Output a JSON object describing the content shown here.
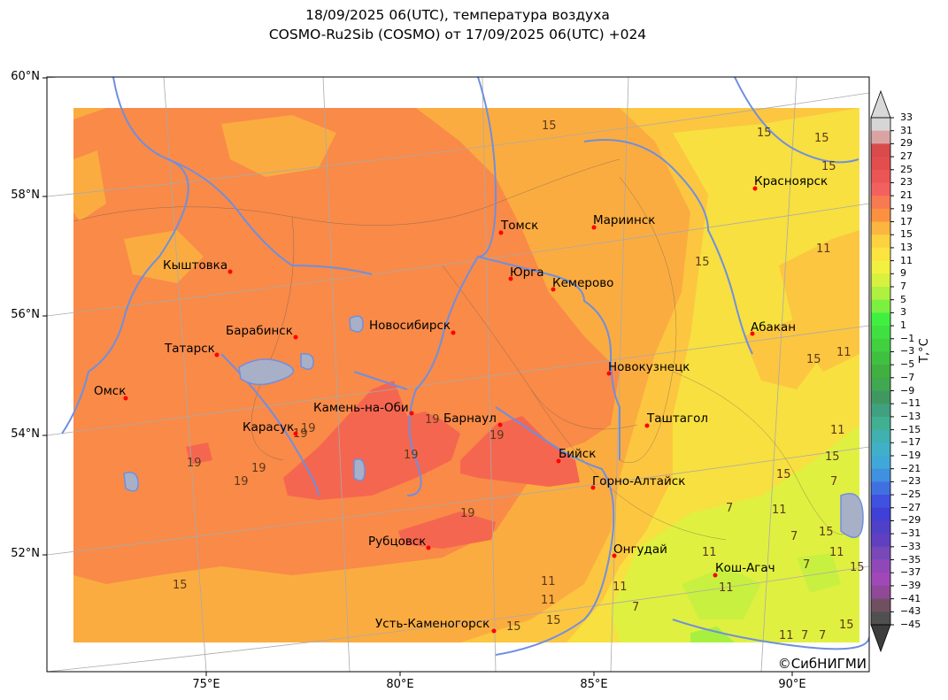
{
  "title_line1": "18/09/2025 06(UTC), температура воздуха",
  "title_line2": "COSMO-Ru2Sib (COSMO) от 17/09/2025 06(UTC) +024",
  "copyright": "©СибНИГМИ",
  "lat_labels": [
    "60°N",
    "58°N",
    "56°N",
    "54°N",
    "52°N"
  ],
  "lon_labels": [
    "75°E",
    "80°E",
    "85°E",
    "90°E"
  ],
  "colorbar": {
    "unit": "T,°C",
    "ticks": [
      "33",
      "31",
      "29",
      "27",
      "25",
      "23",
      "21",
      "19",
      "17",
      "15",
      "13",
      "11",
      "9",
      "7",
      "5",
      "3",
      "1",
      "−1",
      "−3",
      "−5",
      "−7",
      "−9",
      "−11",
      "−13",
      "−15",
      "−17",
      "−19",
      "−21",
      "−23",
      "−25",
      "−27",
      "−29",
      "−31",
      "−33",
      "−35",
      "−37",
      "−39",
      "−41",
      "−43",
      "−45"
    ],
    "colors": [
      "#d6d6d6",
      "#d9a3a3",
      "#d94a4a",
      "#e34d4d",
      "#eb5555",
      "#f36060",
      "#f87a50",
      "#fa9040",
      "#fbb640",
      "#fcd240",
      "#fbe440",
      "#f2f040",
      "#d8f040",
      "#b0f040",
      "#7cf040",
      "#40f040",
      "#40e040",
      "#40d040",
      "#40c040",
      "#40b040",
      "#40a850",
      "#409860",
      "#40a080",
      "#40b090",
      "#40b0b0",
      "#40b0c8",
      "#40a8d8",
      "#4090e0",
      "#4070e0",
      "#4050e0",
      "#4040d8",
      "#5040c8",
      "#6040c0",
      "#7848b8",
      "#9048b8",
      "#a048b8",
      "#904898",
      "#705060",
      "#505050"
    ]
  },
  "cities": [
    {
      "name": "Красноярск"
    },
    {
      "name": "Мариинск"
    },
    {
      "name": "Томск"
    },
    {
      "name": "Кыштовка"
    },
    {
      "name": "Юрга"
    },
    {
      "name": "Кемерово"
    },
    {
      "name": "Новосибирск"
    },
    {
      "name": "Барабинск"
    },
    {
      "name": "Абакан"
    },
    {
      "name": "Татарск"
    },
    {
      "name": "Новокузнецк"
    },
    {
      "name": "Омск"
    },
    {
      "name": "Камень-на-Оби"
    },
    {
      "name": "Барнаул"
    },
    {
      "name": "Таштагол"
    },
    {
      "name": "Карасук"
    },
    {
      "name": "Бийск"
    },
    {
      "name": "Горно-Алтайск"
    },
    {
      "name": "Рубцовск"
    },
    {
      "name": "Онгудай"
    },
    {
      "name": "Кош-Агач"
    },
    {
      "name": "Усть-Каменогорск"
    }
  ],
  "isoline_labels": [
    "15",
    "15",
    "15",
    "15",
    "15",
    "15",
    "15",
    "15",
    "15",
    "15",
    "15",
    "15",
    "15",
    "15",
    "11",
    "11",
    "11",
    "11",
    "11",
    "11",
    "11",
    "11",
    "11",
    "11",
    "11",
    "7",
    "7",
    "7",
    "7",
    "7",
    "7",
    "7",
    "19",
    "19",
    "19",
    "19",
    "19",
    "19",
    "19",
    "19",
    "19"
  ],
  "field_colors": {
    "t19": "#f98a48",
    "t17": "#fbac40",
    "t15": "#fcc640",
    "t13": "#f7e040",
    "t11": "#e0f040",
    "t21": "#f56650",
    "water": "#6f8fdf",
    "lake": "#a8b0c8"
  }
}
